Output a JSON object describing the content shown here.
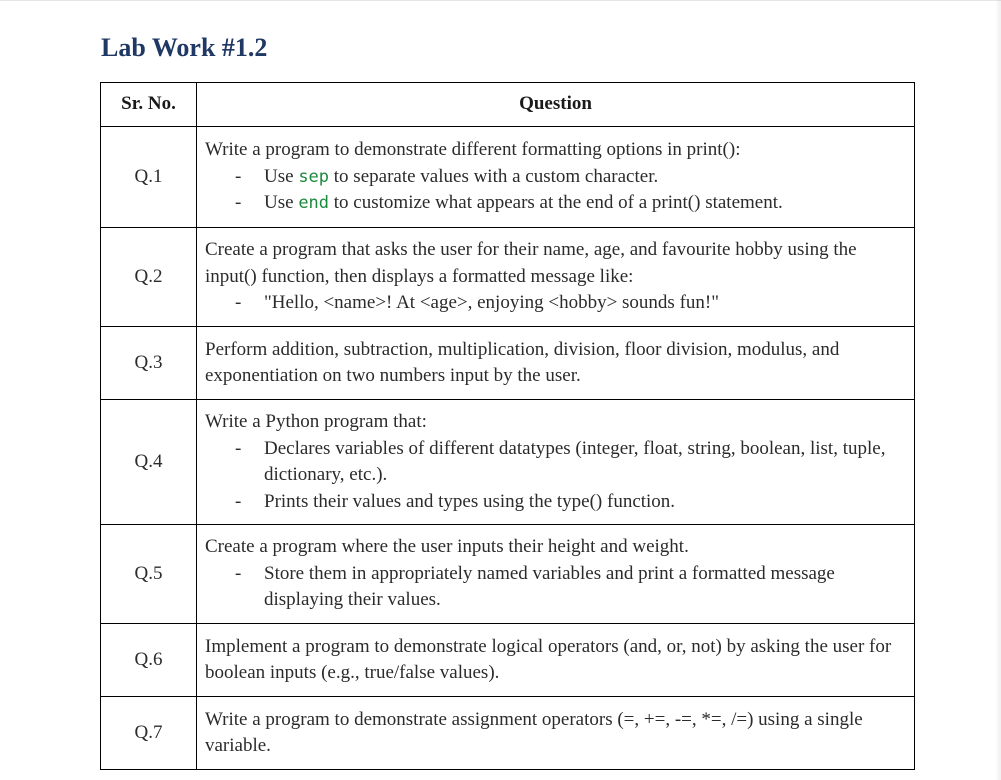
{
  "title": "Lab Work #1.2",
  "table": {
    "headers": {
      "number": "Sr. No.",
      "question": "Question"
    },
    "rows": [
      {
        "number": "Q.1",
        "text": "Write a program to demonstrate different formatting options in print():",
        "bullets": [
          {
            "pre": "Use ",
            "code": "sep",
            "post": " to separate values with a custom character."
          },
          {
            "pre": "Use ",
            "code": "end",
            "post": " to customize what appears at the end of a print() statement."
          }
        ]
      },
      {
        "number": "Q.2",
        "text": "Create a program that asks the user for their name, age, and favourite hobby using the input() function, then displays a formatted message like:",
        "bullets": [
          "\"Hello, <name>! At <age>, enjoying <hobby> sounds fun!\""
        ]
      },
      {
        "number": "Q.3",
        "text": "Perform addition, subtraction, multiplication, division, floor division, modulus, and exponentiation on two numbers input by the user."
      },
      {
        "number": "Q.4",
        "text": "Write a Python program that:",
        "bullets": [
          "Declares variables of different datatypes (integer, float, string, boolean, list, tuple, dictionary, etc.).",
          "Prints their values and types using the type() function."
        ]
      },
      {
        "number": "Q.5",
        "text": "Create a program where the user inputs their height and weight.",
        "bullets": [
          "Store them in appropriately named variables and print a formatted message displaying their values."
        ]
      },
      {
        "number": "Q.6",
        "text": "Implement a program to demonstrate logical operators (and, or, not) by asking the user for boolean inputs (e.g., true/false values)."
      },
      {
        "number": "Q.7",
        "text": "Write a program to demonstrate assignment operators (=, +=, -=, *=, /=) using a single variable."
      }
    ]
  }
}
